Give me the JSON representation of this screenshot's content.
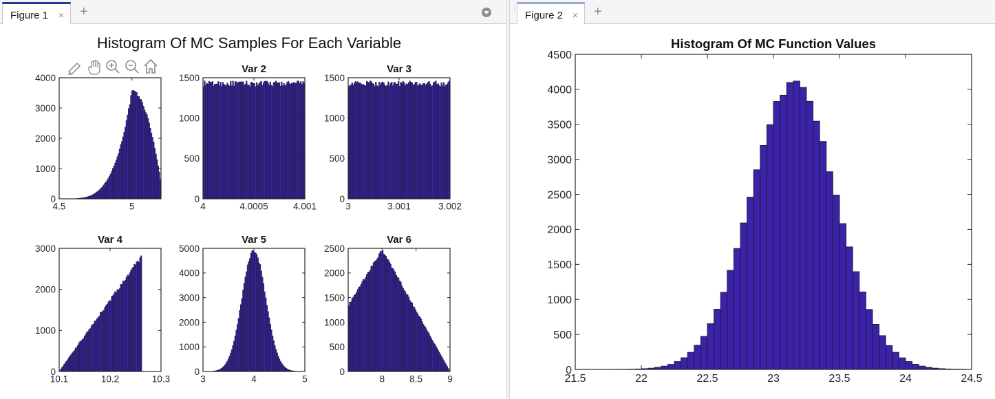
{
  "figure1": {
    "tab_label": "Figure 1",
    "close_glyph": "×",
    "add_glyph": "+",
    "suptitle": "Histogram Of MC Samples For Each Variable",
    "toolbar_icons": [
      "brush-icon",
      "pan-hand-icon",
      "zoom-in-icon",
      "zoom-out-icon",
      "home-icon"
    ]
  },
  "figure2": {
    "tab_label": "Figure 2",
    "close_glyph": "×",
    "add_glyph": "+"
  },
  "colors": {
    "bar_fill": "#3b22a8",
    "bar_edge": "#1c1c2e",
    "axis": "#262626",
    "tab_accent": "#1b3e94"
  },
  "chart_data": [
    {
      "id": "var1",
      "type": "bar",
      "title": "",
      "shape": "skew_left",
      "xlim": [
        4.5,
        5.2
      ],
      "ylim": [
        0,
        4000
      ],
      "peak": 3550,
      "peak_x": 5.0,
      "xticks": [
        "4.5",
        "5"
      ],
      "yticks": [
        "0",
        "1000",
        "2000",
        "3000",
        "4000"
      ]
    },
    {
      "id": "var2",
      "type": "bar",
      "title": "Var 2",
      "shape": "uniform",
      "xlim": [
        4.0,
        4.001
      ],
      "ylim": [
        0,
        1500
      ],
      "level": 1440,
      "xticks": [
        "4",
        "4.0005",
        "4.001"
      ],
      "yticks": [
        "0",
        "500",
        "1000",
        "1500"
      ]
    },
    {
      "id": "var3",
      "type": "bar",
      "title": "Var 3",
      "shape": "uniform",
      "xlim": [
        3.0,
        3.002
      ],
      "ylim": [
        0,
        1500
      ],
      "level": 1440,
      "xticks": [
        "3",
        "3.001",
        "3.002"
      ],
      "yticks": [
        "0",
        "500",
        "1000",
        "1500"
      ]
    },
    {
      "id": "var4",
      "type": "bar",
      "title": "Var 4",
      "shape": "triangle_right",
      "xlim": [
        10.1,
        10.3
      ],
      "ylim": [
        0,
        3000
      ],
      "peak": 2780,
      "peak_x": 10.26,
      "xticks": [
        "10.1",
        "10.2",
        "10.3"
      ],
      "yticks": [
        "0",
        "1000",
        "2000",
        "3000"
      ]
    },
    {
      "id": "var5",
      "type": "bar",
      "title": "Var 5",
      "shape": "normal",
      "xlim": [
        3,
        5
      ],
      "ylim": [
        0,
        5000
      ],
      "peak": 4900,
      "mean": 4.0,
      "xticks": [
        "3",
        "4",
        "5"
      ],
      "yticks": [
        "0",
        "1000",
        "2000",
        "3000",
        "4000",
        "5000"
      ]
    },
    {
      "id": "var6",
      "type": "bar",
      "title": "Var 6",
      "shape": "triangle",
      "xlim": [
        7.5,
        9.0
      ],
      "ylim": [
        0,
        2500
      ],
      "peak": 2470,
      "peak_x": 8.0,
      "start_value": 1330,
      "xticks": [
        "8",
        "8.5",
        "9"
      ],
      "yticks": [
        "0",
        "500",
        "1000",
        "1500",
        "2000",
        "2500"
      ]
    },
    {
      "id": "fvals",
      "type": "bar",
      "title": "Histogram Of MC Function Values",
      "shape": "normal",
      "xlim": [
        21.5,
        24.5
      ],
      "ylim": [
        0,
        4500
      ],
      "peak": 4080,
      "mean": 23.15,
      "xticks": [
        "21.5",
        "22",
        "22.5",
        "23",
        "23.5",
        "24",
        "24.5"
      ],
      "yticks": [
        "0",
        "500",
        "1000",
        "1500",
        "2000",
        "2500",
        "3000",
        "3500",
        "4000",
        "4500"
      ]
    }
  ]
}
